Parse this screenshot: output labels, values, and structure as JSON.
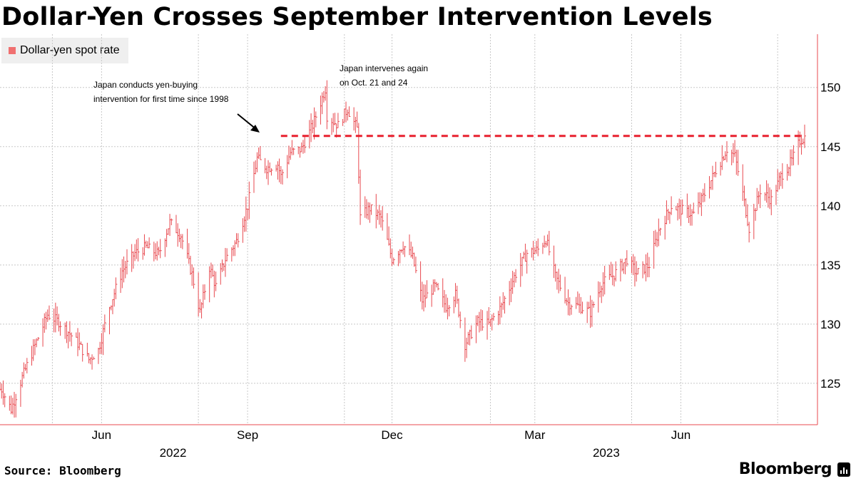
{
  "chart_data": {
    "type": "ohlc",
    "title": "Dollar-Yen Crosses September Intervention Levels",
    "legend": {
      "placement": "top-left",
      "entries": [
        "Dollar-yen spot rate"
      ]
    },
    "series": [
      {
        "name": "Dollar-yen spot rate",
        "color": "#e8494f",
        "keypoints": [
          [
            "2022-03-30",
            124.5
          ],
          [
            "2022-04-05",
            122.8
          ],
          [
            "2022-04-12",
            125.5
          ],
          [
            "2022-04-20",
            128.2
          ],
          [
            "2022-04-28",
            130.8
          ],
          [
            "2022-05-05",
            130.2
          ],
          [
            "2022-05-12",
            129.2
          ],
          [
            "2022-05-18",
            128.2
          ],
          [
            "2022-05-24",
            127.0
          ],
          [
            "2022-05-30",
            127.8
          ],
          [
            "2022-06-06",
            131.5
          ],
          [
            "2022-06-14",
            134.5
          ],
          [
            "2022-06-22",
            136.0
          ],
          [
            "2022-06-29",
            136.5
          ],
          [
            "2022-07-07",
            135.9
          ],
          [
            "2022-07-14",
            138.6
          ],
          [
            "2022-07-21",
            137.5
          ],
          [
            "2022-07-28",
            134.2
          ],
          [
            "2022-08-02",
            131.0
          ],
          [
            "2022-08-08",
            134.8
          ],
          [
            "2022-08-12",
            133.2
          ],
          [
            "2022-08-18",
            135.5
          ],
          [
            "2022-08-25",
            137.0
          ],
          [
            "2022-09-01",
            140.0
          ],
          [
            "2022-09-07",
            144.0
          ],
          [
            "2022-09-13",
            143.2
          ],
          [
            "2022-09-20",
            143.5
          ],
          [
            "2022-09-22",
            142.5
          ],
          [
            "2022-09-28",
            144.5
          ],
          [
            "2022-10-05",
            144.8
          ],
          [
            "2022-10-12",
            146.8
          ],
          [
            "2022-10-20",
            149.9
          ],
          [
            "2022-10-21",
            147.6
          ],
          [
            "2022-10-28",
            146.8
          ],
          [
            "2022-11-03",
            148.2
          ],
          [
            "2022-11-09",
            146.5
          ],
          [
            "2022-11-11",
            139.0
          ],
          [
            "2022-11-17",
            139.8
          ],
          [
            "2022-11-24",
            139.0
          ],
          [
            "2022-12-01",
            135.5
          ],
          [
            "2022-12-08",
            136.7
          ],
          [
            "2022-12-14",
            135.6
          ],
          [
            "2022-12-20",
            132.0
          ],
          [
            "2022-12-28",
            133.2
          ],
          [
            "2023-01-04",
            131.5
          ],
          [
            "2023-01-10",
            132.5
          ],
          [
            "2023-01-16",
            128.3
          ],
          [
            "2023-01-24",
            130.2
          ],
          [
            "2023-01-31",
            130.0
          ],
          [
            "2023-02-08",
            131.5
          ],
          [
            "2023-02-16",
            134.0
          ],
          [
            "2023-02-24",
            136.0
          ],
          [
            "2023-03-03",
            136.3
          ],
          [
            "2023-03-08",
            137.2
          ],
          [
            "2023-03-14",
            134.0
          ],
          [
            "2023-03-22",
            131.8
          ],
          [
            "2023-03-29",
            131.5
          ],
          [
            "2023-04-05",
            131.0
          ],
          [
            "2023-04-12",
            133.4
          ],
          [
            "2023-04-20",
            134.2
          ],
          [
            "2023-04-28",
            135.5
          ],
          [
            "2023-05-04",
            134.3
          ],
          [
            "2023-05-12",
            135.0
          ],
          [
            "2023-05-18",
            137.9
          ],
          [
            "2023-05-26",
            140.0
          ],
          [
            "2023-06-02",
            139.6
          ],
          [
            "2023-06-09",
            139.3
          ],
          [
            "2023-06-16",
            141.0
          ],
          [
            "2023-06-23",
            143.0
          ],
          [
            "2023-06-30",
            144.8
          ],
          [
            "2023-07-05",
            144.2
          ],
          [
            "2023-07-10",
            141.0
          ],
          [
            "2023-07-14",
            138.1
          ],
          [
            "2023-07-21",
            141.3
          ],
          [
            "2023-07-28",
            140.5
          ],
          [
            "2023-08-03",
            142.5
          ],
          [
            "2023-08-10",
            143.8
          ],
          [
            "2023-08-15",
            145.5
          ],
          [
            "2023-08-18",
            145.8
          ]
        ]
      }
    ],
    "reference_line": {
      "value": 145.9,
      "color": "#e8202e",
      "style": "dashed"
    },
    "x_axis": {
      "range": [
        "2022-03-29",
        "2023-08-18"
      ],
      "month_ticks": [
        {
          "label": "Jun",
          "date": "2022-06-01"
        },
        {
          "label": "Sep",
          "date": "2022-09-01"
        },
        {
          "label": "Dec",
          "date": "2022-12-01"
        },
        {
          "label": "Mar",
          "date": "2023-03-01"
        },
        {
          "label": "Jun",
          "date": "2023-06-01"
        }
      ],
      "gridline_dates": [
        "2022-05-01",
        "2022-08-01",
        "2022-11-01",
        "2023-02-01",
        "2023-05-01",
        "2023-08-01"
      ],
      "year_labels": [
        {
          "label": "2022",
          "date": "2022-07-16"
        },
        {
          "label": "2023",
          "date": "2023-04-15"
        }
      ]
    },
    "y_axis": {
      "position": "right",
      "range": [
        121.5,
        154.5
      ],
      "ticks": [
        125,
        130,
        135,
        140,
        145,
        150
      ]
    },
    "grid": true,
    "annotations": [
      {
        "lines": [
          "Japan conducts yen-buying",
          "intervention for first time since 1998"
        ]
      },
      {
        "lines": [
          "Japan intervenes again",
          "on Oct. 21 and 24"
        ]
      }
    ]
  },
  "footer": {
    "source": "Source: Bloomberg",
    "brand": "Bloomberg"
  }
}
